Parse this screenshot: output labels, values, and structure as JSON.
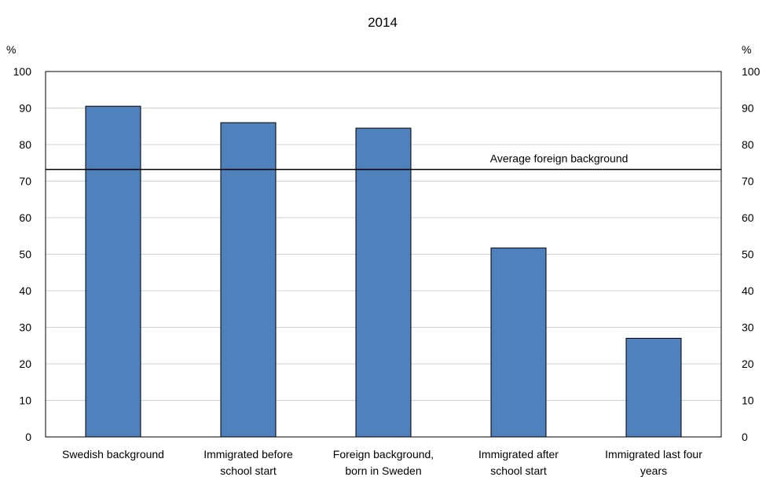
{
  "chart_data": {
    "type": "bar",
    "title": "2014",
    "ylabel_left": "%",
    "ylabel_right": "%",
    "ylim": [
      0,
      100
    ],
    "yticks": [
      0,
      10,
      20,
      30,
      40,
      50,
      60,
      70,
      80,
      90,
      100
    ],
    "categories": [
      [
        "Swedish background"
      ],
      [
        "Immigrated before",
        "school start"
      ],
      [
        "Foreign background,",
        "born in Sweden"
      ],
      [
        "Immigrated after",
        "school start"
      ],
      [
        "Immigrated last four",
        "years"
      ]
    ],
    "values": [
      90.5,
      86,
      84.5,
      51.7,
      27
    ],
    "bar_color": "#4f81bd",
    "reference_line": {
      "label": "Average foreign background",
      "value": 73.2
    },
    "grid": true,
    "legend": "none"
  }
}
